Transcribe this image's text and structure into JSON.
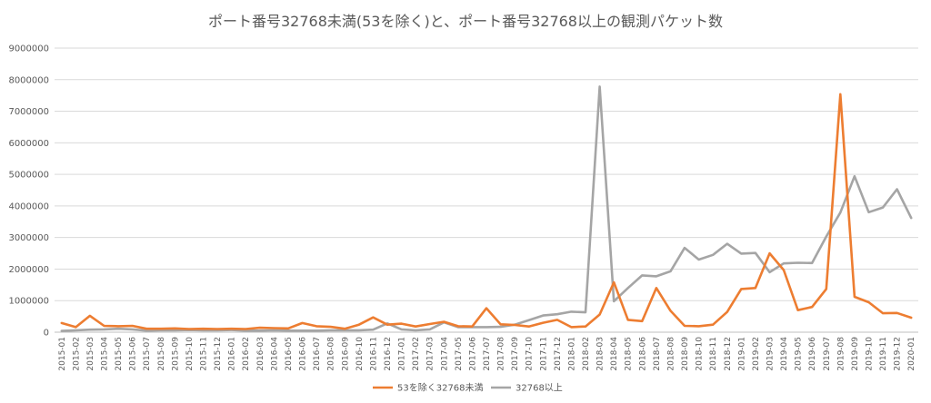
{
  "chart_data": {
    "type": "line",
    "title": "ポート番号32768未満(53を除く)と、ポート番号32768以上の観測パケット数",
    "xlabel": "",
    "ylabel": "",
    "ylim": [
      0,
      9000000
    ],
    "yticks": [
      "0",
      "1000000",
      "2000000",
      "3000000",
      "4000000",
      "5000000",
      "6000000",
      "7000000",
      "8000000",
      "9000000"
    ],
    "grid": true,
    "legend_position": "bottom",
    "categories": [
      "2015-01",
      "2015-02",
      "2015-03",
      "2015-04",
      "2015-05",
      "2015-06",
      "2015-07",
      "2015-08",
      "2015-09",
      "2015-10",
      "2015-11",
      "2015-12",
      "2016-01",
      "2016-02",
      "2016-03",
      "2016-04",
      "2016-05",
      "2016-06",
      "2016-07",
      "2016-08",
      "2016-09",
      "2016-10",
      "2016-11",
      "2016-12",
      "2017-01",
      "2017-02",
      "2017-03",
      "2017-04",
      "2017-05",
      "2017-06",
      "2017-07",
      "2017-08",
      "2017-09",
      "2017-10",
      "2017-11",
      "2017-12",
      "2018-01",
      "2018-02",
      "2018-03",
      "2018-04",
      "2018-05",
      "2018-06",
      "2018-07",
      "2018-08",
      "2018-09",
      "2018-10",
      "2018-11",
      "2018-12",
      "2019-01",
      "2019-02",
      "2019-03",
      "2019-04",
      "2019-05",
      "2019-06",
      "2019-07",
      "2019-08",
      "2019-09",
      "2019-10",
      "2019-11",
      "2019-12",
      "2020-01"
    ],
    "series": [
      {
        "name": "53を除く32768未満",
        "color": "#ED7D31",
        "values": [
          290000,
          160000,
          520000,
          200000,
          190000,
          200000,
          110000,
          110000,
          120000,
          100000,
          110000,
          100000,
          110000,
          100000,
          140000,
          130000,
          120000,
          290000,
          190000,
          170000,
          110000,
          240000,
          470000,
          240000,
          270000,
          180000,
          260000,
          330000,
          190000,
          180000,
          760000,
          250000,
          230000,
          180000,
          300000,
          390000,
          160000,
          180000,
          560000,
          1580000,
          390000,
          350000,
          1400000,
          680000,
          200000,
          190000,
          240000,
          640000,
          1370000,
          1400000,
          2500000,
          1970000,
          700000,
          800000,
          1370000,
          7540000,
          1120000,
          950000,
          600000,
          610000,
          460000
        ]
      },
      {
        "name": "32768以上",
        "color": "#A5A5A5",
        "values": [
          40000,
          60000,
          80000,
          90000,
          110000,
          90000,
          50000,
          60000,
          60000,
          70000,
          60000,
          60000,
          70000,
          50000,
          50000,
          60000,
          50000,
          50000,
          50000,
          60000,
          60000,
          60000,
          80000,
          280000,
          90000,
          60000,
          90000,
          310000,
          160000,
          160000,
          160000,
          170000,
          240000,
          380000,
          530000,
          570000,
          650000,
          630000,
          7780000,
          980000,
          1400000,
          1800000,
          1770000,
          1930000,
          2670000,
          2300000,
          2450000,
          2800000,
          2490000,
          2510000,
          1900000,
          2180000,
          2200000,
          2190000,
          3030000,
          3790000,
          4940000,
          3800000,
          3950000,
          4530000,
          3620000
        ]
      }
    ]
  }
}
